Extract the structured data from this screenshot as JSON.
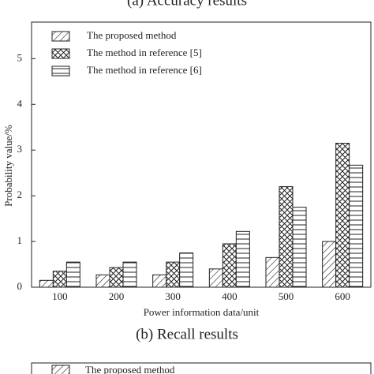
{
  "chart_data": {
    "type": "bar",
    "title": "(a) Accuracy results",
    "xlabel": "Power information data/unit",
    "ylabel": "Probability value/%",
    "categories": [
      "100",
      "200",
      "300",
      "400",
      "500",
      "600"
    ],
    "series": [
      {
        "name": "The proposed method",
        "color": "#222222",
        "values": [
          0.15,
          0.27,
          0.27,
          0.4,
          0.65,
          1.0
        ]
      },
      {
        "name": "The method in reference [5]",
        "color": "#222222",
        "values": [
          0.35,
          0.43,
          0.55,
          0.95,
          2.2,
          3.15
        ]
      },
      {
        "name": "The method in reference [6]",
        "color": "#222222",
        "values": [
          0.55,
          0.55,
          0.75,
          1.22,
          1.75,
          2.67
        ]
      }
    ],
    "ylim": [
      0,
      5.8
    ],
    "yticks": [
      0,
      1,
      2,
      3,
      4,
      5
    ],
    "legend": "upper left"
  },
  "next_panel": {
    "caption": "(b) Recall results",
    "legend_entry": "The proposed method"
  }
}
